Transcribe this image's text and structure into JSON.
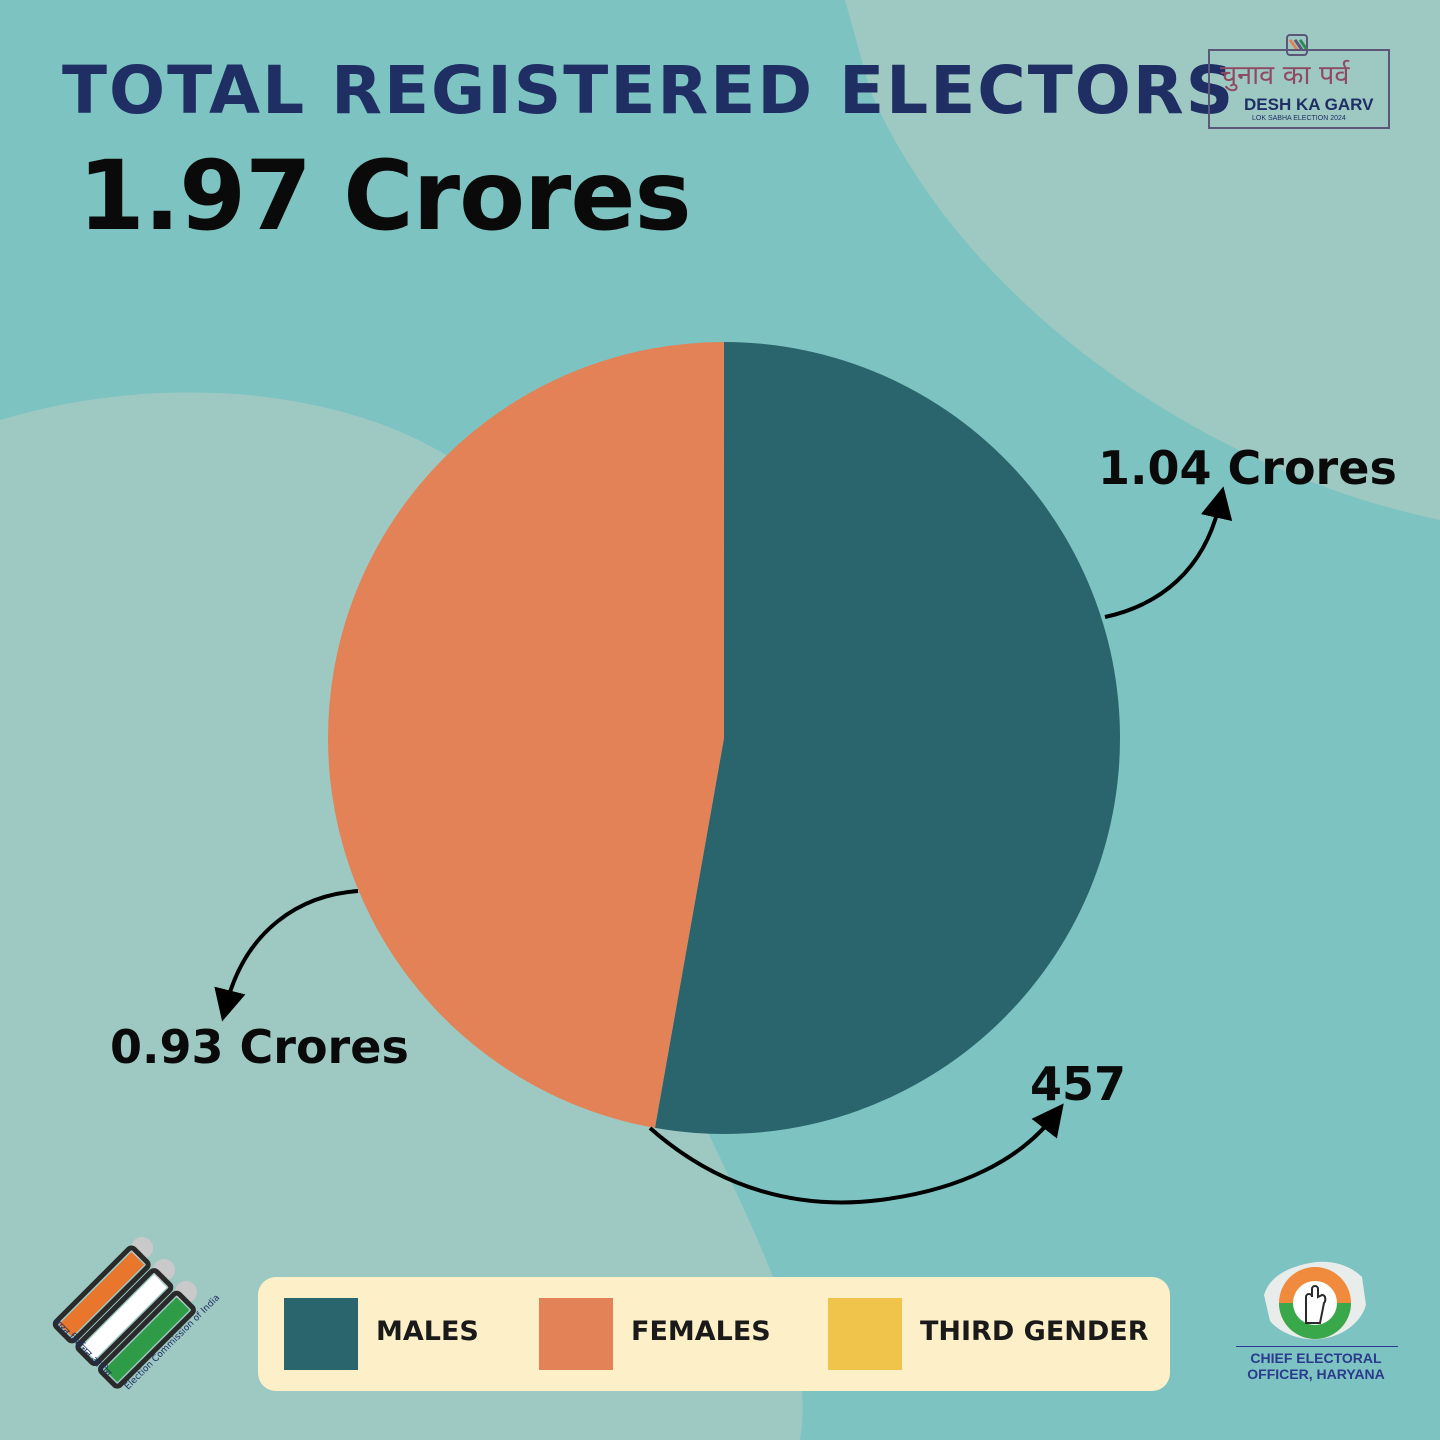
{
  "header": {
    "title": "TOTAL REGISTERED ELECTORS",
    "total": "1.97 Crores"
  },
  "campaign_logo": {
    "hindi": "चुनाव का पर्व",
    "english": "DESH KA GARV",
    "subtitle": "LOK SABHA ELECTION 2024"
  },
  "chart_data": {
    "type": "pie",
    "title": "TOTAL REGISTERED ELECTORS",
    "total_label": "1.97 Crores",
    "unit": "Crores",
    "slices": [
      {
        "name": "MALES",
        "value": 1.04,
        "label": "1.04 Crores",
        "color": "#2a646c"
      },
      {
        "name": "FEMALES",
        "value": 0.93,
        "label": "0.93 Crores",
        "color": "#e38256"
      },
      {
        "name": "THIRD GENDER",
        "value": 4.57e-05,
        "label": "457",
        "color": "#f0c34a"
      }
    ],
    "legend_placement": "bottom"
  },
  "legend": {
    "items": [
      {
        "label": "MALES",
        "color": "#2a646c"
      },
      {
        "label": "FEMALES",
        "color": "#e38256"
      },
      {
        "label": "THIRD GENDER",
        "color": "#f0c34a"
      }
    ]
  },
  "eci_logo": {
    "hindi": "भारत निर्वाचन आयोग",
    "english": "Election Commission of India"
  },
  "ceo_logo": {
    "line1": "CHIEF ELECTORAL",
    "line2": "OFFICER, HARYANA"
  }
}
